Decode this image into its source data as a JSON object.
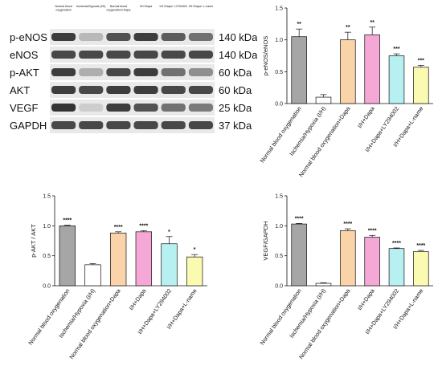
{
  "blot": {
    "lane_labels": [
      "Normal blood oxygenation",
      "Ischemia/Hypoxia (I/H)",
      "Normal blood oxygenation+Dapa",
      "I/H+Dapa",
      "I/H+Dapa+ LY294002",
      "I/H+Dapa+ L-name"
    ],
    "rows": [
      {
        "protein": "p-eNOS",
        "size": "140 kDa",
        "intensity": [
          0.85,
          0.25,
          0.75,
          0.85,
          0.7,
          0.6
        ]
      },
      {
        "protein": "eNOS",
        "size": "140 kDa",
        "intensity": [
          0.8,
          0.8,
          0.8,
          0.8,
          0.8,
          0.8
        ]
      },
      {
        "protein": "p-AKT",
        "size": "60 kDa",
        "intensity": [
          0.85,
          0.3,
          0.8,
          0.85,
          0.6,
          0.45
        ]
      },
      {
        "protein": "AKT",
        "size": "60 kDa",
        "intensity": [
          0.85,
          0.8,
          0.85,
          0.85,
          0.8,
          0.8
        ]
      },
      {
        "protein": "VEGF",
        "size": "25 kDa",
        "intensity": [
          0.9,
          0.15,
          0.85,
          0.75,
          0.6,
          0.55
        ]
      },
      {
        "protein": "GAPDH",
        "size": "37 kDa",
        "intensity": [
          0.8,
          0.8,
          0.8,
          0.8,
          0.8,
          0.8
        ]
      }
    ]
  },
  "chart_data": [
    {
      "type": "bar",
      "ylabel": "p-eNOS/eNOS",
      "ylim": [
        0,
        1.5
      ],
      "yticks": [
        "0.0",
        "0.5",
        "1.0",
        "1.5"
      ],
      "categories": [
        "Normal blood oxygenation",
        "Ischemia/Hypoxia (I/H)",
        "Normal blood oxygenation+Dapa",
        "I/H+Dapa",
        "I/H+Dapa+LY294002",
        "I/H+Dapa+L-name"
      ],
      "values": [
        1.05,
        0.1,
        1.0,
        1.08,
        0.75,
        0.57
      ],
      "errors": [
        0.12,
        0.04,
        0.12,
        0.12,
        0.03,
        0.03
      ],
      "significance": [
        "**",
        "",
        "**",
        "**",
        "***",
        "***"
      ]
    },
    {
      "type": "bar",
      "ylabel": "p-AKT / AKT",
      "ylim": [
        0,
        1.5
      ],
      "yticks": [
        "0.0",
        "0.5",
        "1.0",
        "1.5"
      ],
      "categories": [
        "Normal blood oxygenation",
        "Ischemia/Hypoxia (I/H)",
        "Normal blood oxygenation+Dapa",
        "I/H+Dapa",
        "I/H+Dapa+LY294002",
        "I/H+Dapa+L-name"
      ],
      "values": [
        1.0,
        0.35,
        0.88,
        0.9,
        0.7,
        0.48
      ],
      "errors": [
        0.01,
        0.02,
        0.02,
        0.02,
        0.12,
        0.04
      ],
      "significance": [
        "****",
        "",
        "****",
        "****",
        "*",
        "*"
      ]
    },
    {
      "type": "bar",
      "ylabel": "VEGF/GAPDH",
      "ylim": [
        0,
        1.5
      ],
      "yticks": [
        "0.0",
        "0.5",
        "1.0",
        "1.5"
      ],
      "categories": [
        "Normal blood oxygenation",
        "Ischemia/Hypoxia (I/H)",
        "Normal blood oxygenation+Dapa",
        "I/H+Dapa",
        "I/H+Dapa+LY294002",
        "I/H+Dapa+L-name"
      ],
      "values": [
        1.03,
        0.04,
        0.92,
        0.81,
        0.62,
        0.57
      ],
      "errors": [
        0.01,
        0.01,
        0.03,
        0.03,
        0.01,
        0.02
      ],
      "significance": [
        "****",
        "",
        "****",
        "****",
        "****",
        "****"
      ]
    }
  ],
  "colors": {
    "bars": [
      "#a6a6a6",
      "#ffffff",
      "#fbd3a8",
      "#f5a7d6",
      "#b7f0f0",
      "#fafab0"
    ]
  }
}
